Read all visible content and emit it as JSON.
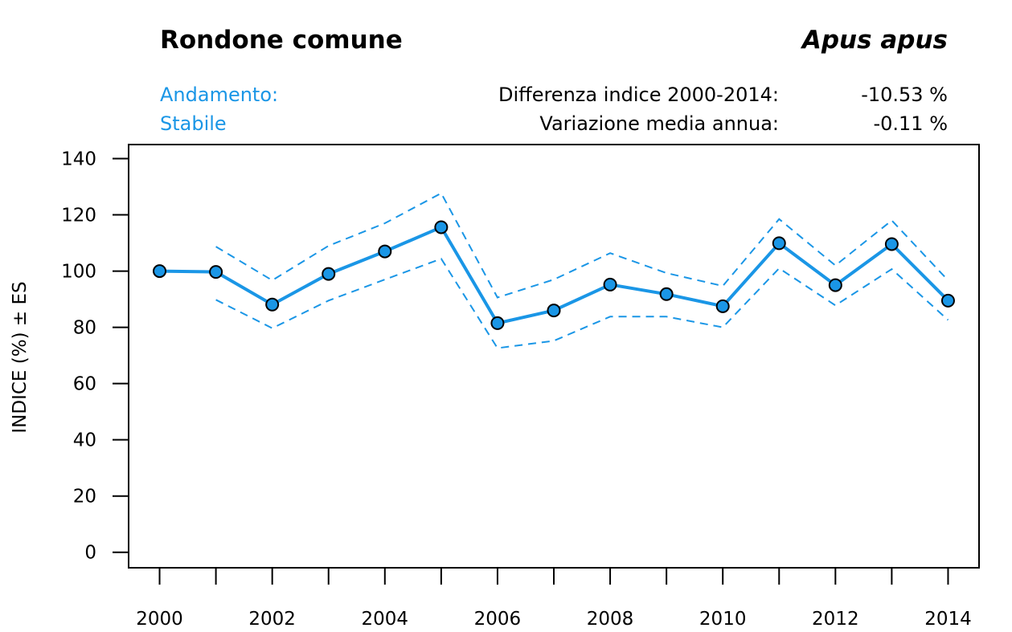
{
  "header": {
    "common_name": "Rondone comune",
    "scientific_name": "Apus apus",
    "trend_label": "Andamento:",
    "trend_value": "Stabile",
    "diff_label": "Differenza indice 2000-2014:",
    "diff_value": "-10.53 %",
    "avg_label": "Variazione media annua:",
    "avg_value": "-0.11 %"
  },
  "colors": {
    "series": "#1a96e6",
    "marker_fill": "#1a96e6",
    "marker_stroke": "#000000",
    "trend_text": "#1a96e6"
  },
  "chart_data": {
    "type": "line",
    "title": "Rondone comune",
    "subtitle": "Apus apus",
    "xlabel": "",
    "ylabel": "INDICE (%) ± ES",
    "x": [
      2000,
      2001,
      2002,
      2003,
      2004,
      2005,
      2006,
      2007,
      2008,
      2009,
      2010,
      2011,
      2012,
      2013,
      2014
    ],
    "xlim": [
      1999.45,
      2014.55
    ],
    "ylim": [
      -5.5,
      145
    ],
    "y_ticks": [
      0,
      20,
      40,
      60,
      80,
      100,
      120,
      140
    ],
    "x_ticks": [
      2000,
      2001,
      2002,
      2003,
      2004,
      2005,
      2006,
      2007,
      2008,
      2009,
      2010,
      2011,
      2012,
      2013,
      2014
    ],
    "x_tick_labels": [
      "2000",
      "",
      "2002",
      "",
      "2004",
      "",
      "2006",
      "",
      "2008",
      "",
      "2010",
      "",
      "2012",
      "",
      "2014"
    ],
    "grid": false,
    "series": [
      {
        "name": "Indice",
        "style": "solid-with-markers",
        "values": [
          100,
          99.7,
          88.1,
          99.0,
          107.0,
          115.6,
          81.5,
          86.0,
          95.2,
          91.8,
          87.5,
          109.9,
          95.0,
          109.6,
          89.5
        ]
      },
      {
        "name": "Indice + ES",
        "style": "dashed",
        "values": [
          null,
          108.7,
          96.7,
          109.0,
          117.0,
          127.7,
          90.6,
          97.0,
          106.4,
          99.3,
          94.7,
          118.5,
          102.0,
          118.0,
          96.7
        ]
      },
      {
        "name": "Indice - ES",
        "style": "dashed",
        "values": [
          null,
          89.8,
          79.7,
          89.5,
          97.0,
          104.4,
          72.6,
          75.2,
          83.8,
          83.8,
          80.0,
          101.0,
          87.8,
          100.7,
          82.6
        ]
      }
    ]
  }
}
